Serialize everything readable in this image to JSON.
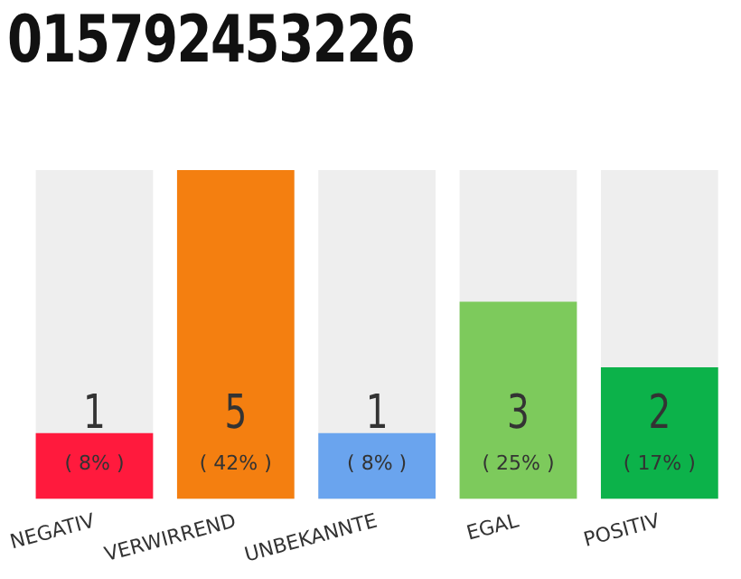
{
  "chart_data": {
    "type": "bar",
    "title": "015792453226",
    "categories": [
      "NEGATIV",
      "VERWIRREND",
      "UNBEKANNTE",
      "EGAL",
      "POSITIV"
    ],
    "values": [
      1,
      5,
      1,
      3,
      2
    ],
    "colors": [
      "#ff1a3d",
      "#f47f10",
      "#6aa4ee",
      "#7dca5c",
      "#0cb24a"
    ],
    "value_labels": [
      "1\n( 8% )",
      "5\n( 42% )",
      "1\n( 8% )",
      "3\n( 25% )",
      "2\n( 17% )"
    ],
    "ylim": [
      0,
      5
    ],
    "tick_labels": "x",
    "grid": false,
    "legend": false
  }
}
